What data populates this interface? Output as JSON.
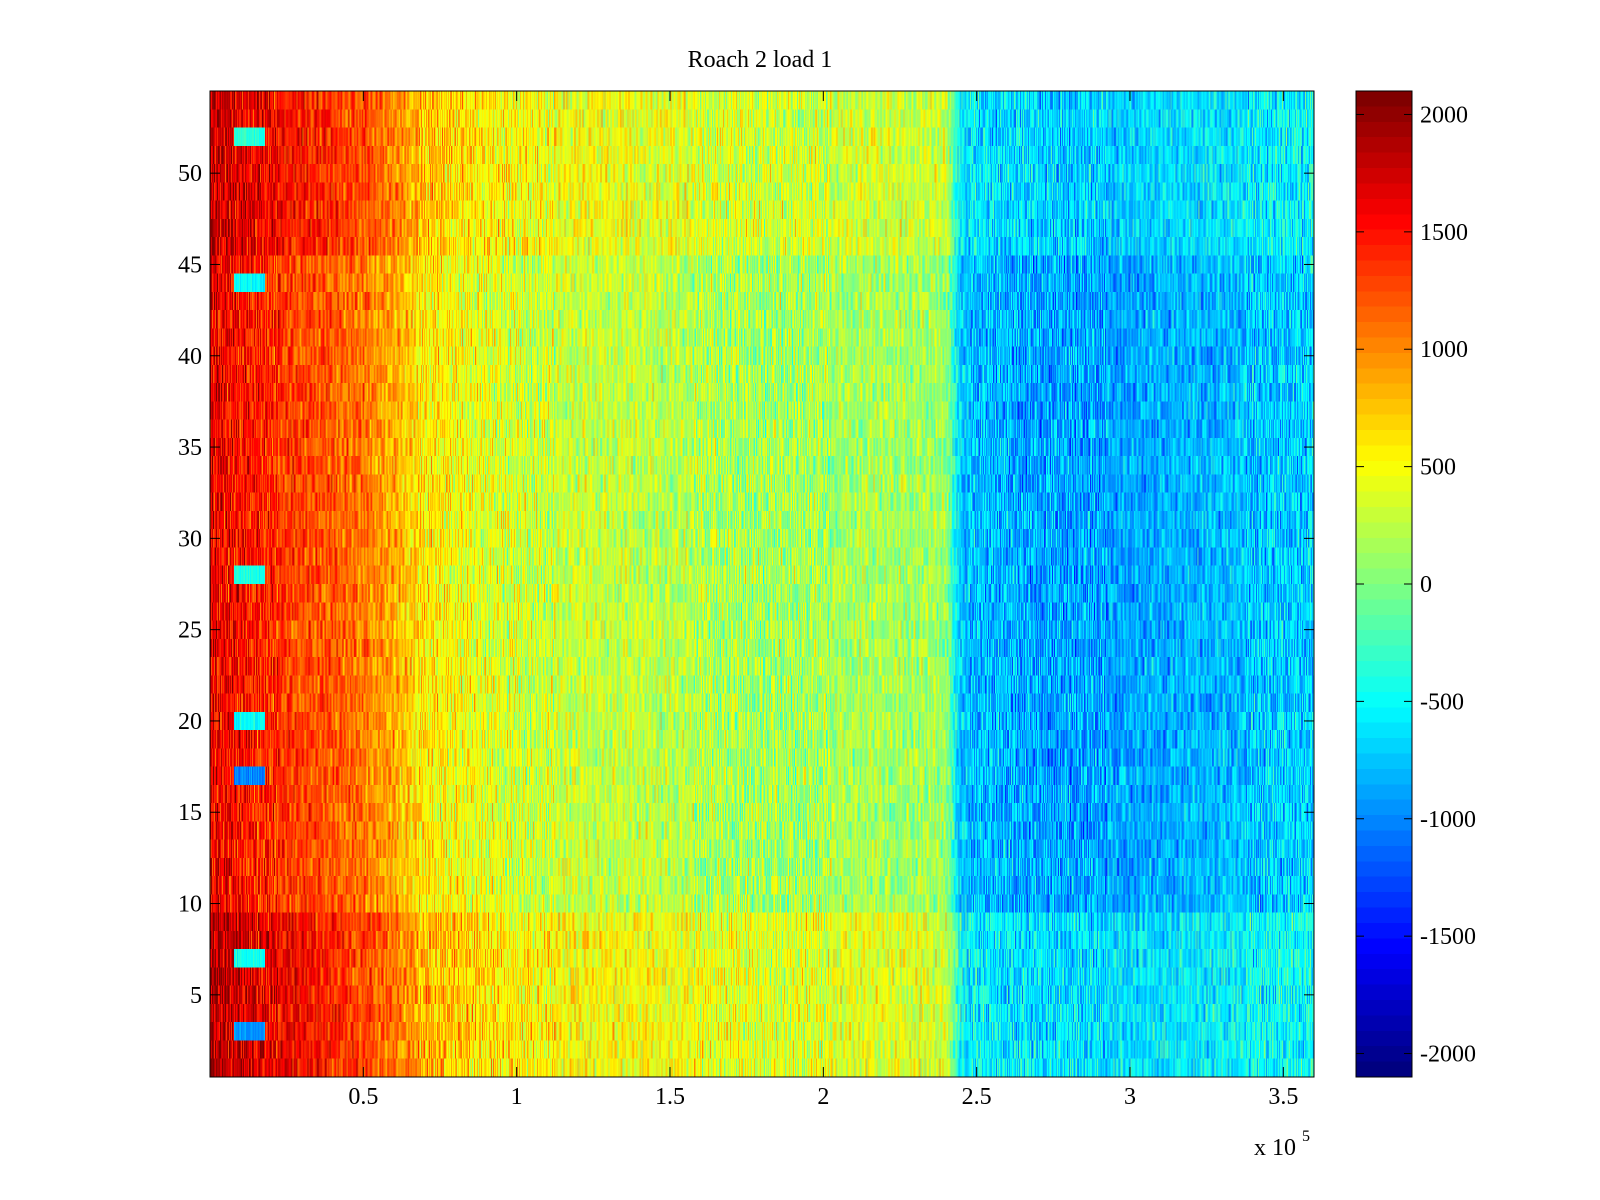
{
  "chart_data": {
    "type": "heatmap",
    "title": "Roach 2 load 1",
    "xlabel": "",
    "ylabel": "",
    "x_range": [
      0,
      360000
    ],
    "y_range": [
      0.5,
      54.5
    ],
    "x_ticks": [
      0.5,
      1,
      1.5,
      2,
      2.5,
      3,
      3.5
    ],
    "x_tick_labels": [
      "0.5",
      "1",
      "1.5",
      "2",
      "2.5",
      "3",
      "3.5"
    ],
    "x_exponent_label": "x 10",
    "x_exponent_power": "5",
    "y_ticks": [
      5,
      10,
      15,
      20,
      25,
      30,
      35,
      40,
      45,
      50
    ],
    "y_tick_labels": [
      "5",
      "10",
      "15",
      "20",
      "25",
      "30",
      "35",
      "40",
      "45",
      "50"
    ],
    "rows": 54,
    "colormap": "jet",
    "colorbar": {
      "range": [
        -2100,
        2100
      ],
      "ticks": [
        2000,
        1500,
        1000,
        500,
        0,
        -500,
        -1000,
        -1500,
        -2000
      ],
      "tick_labels": [
        "2000",
        "1500",
        "1000",
        "500",
        "0",
        "-500",
        "-1000",
        "-1500",
        "-2000"
      ],
      "levels": 64
    },
    "column_trend": {
      "x": [
        0,
        10000,
        30000,
        50000,
        70000,
        100000,
        140000,
        180000,
        220000,
        240000,
        245000,
        270000,
        300000,
        330000,
        360000
      ],
      "value": [
        1700,
        1550,
        1350,
        1150,
        650,
        380,
        330,
        200,
        230,
        180,
        -700,
        -820,
        -820,
        -720,
        -620
      ]
    },
    "row_offsets": {
      "rows_1_9": 180,
      "rows_10_45": -60,
      "rows_46_54": 120
    },
    "anomalies": [
      {
        "row": 3,
        "x_start": 8000,
        "x_end": 18000,
        "value": -900
      },
      {
        "row": 7,
        "x_start": 8000,
        "x_end": 18000,
        "value": -450
      },
      {
        "row": 17,
        "x_start": 8000,
        "x_end": 18000,
        "value": -1000
      },
      {
        "row": 20,
        "x_start": 8000,
        "x_end": 18000,
        "value": -500
      },
      {
        "row": 28,
        "x_start": 8000,
        "x_end": 18000,
        "value": -400
      },
      {
        "row": 44,
        "x_start": 8000,
        "x_end": 18000,
        "value": -500
      },
      {
        "row": 52,
        "x_start": 8000,
        "x_end": 18000,
        "value": -350
      }
    ]
  }
}
